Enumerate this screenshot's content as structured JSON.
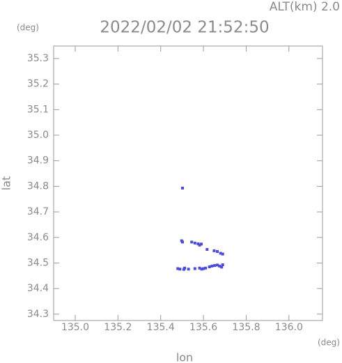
{
  "chart_data": {
    "type": "scatter",
    "title": "2022/02/02 21:52:50",
    "altitude_label": "ALT(km) 2.0",
    "y_unit": "(deg)",
    "x_unit": "(deg)",
    "xlabel": "lon",
    "ylabel": "lat",
    "color": "#4b4be0",
    "xlim": [
      134.899,
      136.157
    ],
    "ylim": [
      34.275,
      35.349
    ],
    "xticks": [
      {
        "value": 135,
        "label": "135.0"
      },
      135.2,
      135.4,
      135.6,
      135.8,
      {
        "value": 136,
        "label": "136.0"
      }
    ],
    "yticks": [
      34.3,
      34.4,
      34.5,
      34.6,
      34.7,
      34.8,
      34.9,
      {
        "value": 35,
        "label": "35.0"
      },
      35.1,
      35.2,
      35.3
    ],
    "x": [
      135.502,
      135.498,
      135.502,
      135.545,
      135.56,
      135.575,
      135.582,
      135.59,
      135.617,
      135.65,
      135.665,
      135.68,
      135.69,
      135.48,
      135.49,
      135.508,
      135.512,
      135.53,
      135.582,
      135.592,
      135.6,
      135.61,
      135.628,
      135.64,
      135.652,
      135.665,
      135.675,
      135.685,
      135.69,
      135.56
    ],
    "values": [
      34.793,
      34.587,
      34.582,
      34.582,
      34.578,
      34.575,
      34.57,
      34.574,
      34.553,
      34.548,
      34.545,
      34.538,
      34.535,
      34.478,
      34.476,
      34.475,
      34.48,
      34.476,
      34.48,
      34.476,
      34.478,
      34.48,
      34.485,
      34.488,
      34.49,
      34.492,
      34.488,
      34.484,
      34.493,
      34.478
    ]
  }
}
